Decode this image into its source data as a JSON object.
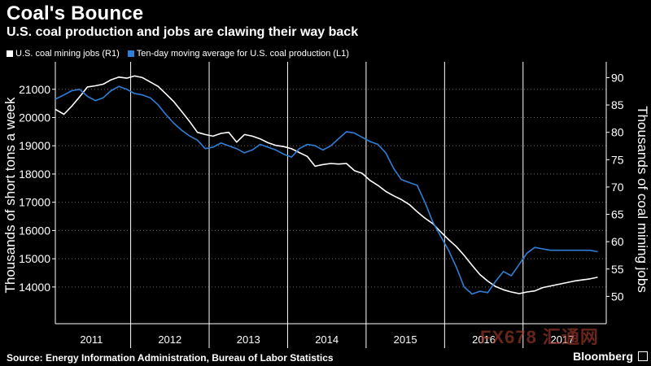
{
  "title": "Coal's Bounce",
  "subtitle": "U.S. coal production and jobs are clawing their way back",
  "source": "Source: Energy Information Administration, Bureau of Labor Statistics",
  "brand": "Bloomberg",
  "watermark": "FX678 汇通网",
  "chart_data": {
    "type": "line",
    "legend_position": "top-left",
    "ylabel_left": "Thousands of short tons a week",
    "ylabel_right": "Thousands of coal mining jobs",
    "ylim_left": [
      12700,
      21800
    ],
    "ylim_right": [
      45,
      92
    ],
    "yticks_left": [
      14000,
      15000,
      16000,
      17000,
      18000,
      19000,
      20000,
      21000
    ],
    "yticks_right": [
      50,
      55,
      60,
      65,
      70,
      75,
      80,
      85,
      90
    ],
    "xlim": [
      2010.54,
      2017.56
    ],
    "year_labels": [
      "2011",
      "2012",
      "2013",
      "2014",
      "2015",
      "2016",
      "2017"
    ],
    "year_dividers": [
      2011.5,
      2012.5,
      2013.5,
      2014.5,
      2015.5,
      2016.5
    ],
    "grid": "horizontal dotted",
    "colors": {
      "background": "#000000",
      "jobs": "#ffffff",
      "production": "#2e7fd8",
      "divider": "#ffffff",
      "grid": "#666666"
    },
    "series": [
      {
        "name": "U.S. coal mining jobs (R1)",
        "axis": "right",
        "color": "#ffffff",
        "x": [
          2010.54,
          2010.65,
          2010.75,
          2010.85,
          2010.95,
          2011.05,
          2011.15,
          2011.25,
          2011.35,
          2011.45,
          2011.55,
          2011.65,
          2011.75,
          2011.85,
          2011.95,
          2012.05,
          2012.15,
          2012.25,
          2012.35,
          2012.45,
          2012.55,
          2012.65,
          2012.75,
          2012.85,
          2012.95,
          2013.05,
          2013.15,
          2013.25,
          2013.35,
          2013.45,
          2013.55,
          2013.65,
          2013.75,
          2013.85,
          2013.95,
          2014.05,
          2014.15,
          2014.25,
          2014.35,
          2014.45,
          2014.55,
          2014.65,
          2014.75,
          2014.85,
          2014.95,
          2015.05,
          2015.15,
          2015.25,
          2015.35,
          2015.45,
          2015.55,
          2015.65,
          2015.75,
          2015.85,
          2015.95,
          2016.05,
          2016.15,
          2016.25,
          2016.35,
          2016.45,
          2016.55,
          2016.65,
          2016.75,
          2016.85,
          2016.95,
          2017.05,
          2017.15,
          2017.25,
          2017.35,
          2017.45
        ],
        "values": [
          84.2,
          83.3,
          84.8,
          86.5,
          88.3,
          88.5,
          88.8,
          89.6,
          90.1,
          89.9,
          90.3,
          90.0,
          89.2,
          88.4,
          87.0,
          85.6,
          83.8,
          82.0,
          80.0,
          79.6,
          79.3,
          79.8,
          80.0,
          78.2,
          79.6,
          79.3,
          78.8,
          78.1,
          77.6,
          77.4,
          77.0,
          76.3,
          75.6,
          73.8,
          74.1,
          74.3,
          74.2,
          74.3,
          73.0,
          72.5,
          71.2,
          70.3,
          69.2,
          68.4,
          67.7,
          66.8,
          65.5,
          64.3,
          63.3,
          61.8,
          60.4,
          59.1,
          57.5,
          55.7,
          54.0,
          52.8,
          51.8,
          51.2,
          50.8,
          50.5,
          50.8,
          51.0,
          51.6,
          51.9,
          52.2,
          52.5,
          52.8,
          53.0,
          53.2,
          53.5
        ]
      },
      {
        "name": "Ten-day moving average for U.S. coal production  (L1)",
        "axis": "left",
        "color": "#2e7fd8",
        "x": [
          2010.54,
          2010.65,
          2010.75,
          2010.85,
          2010.95,
          2011.05,
          2011.15,
          2011.25,
          2011.35,
          2011.45,
          2011.55,
          2011.65,
          2011.75,
          2011.85,
          2011.95,
          2012.05,
          2012.15,
          2012.25,
          2012.35,
          2012.45,
          2012.55,
          2012.65,
          2012.75,
          2012.85,
          2012.95,
          2013.05,
          2013.15,
          2013.25,
          2013.35,
          2013.45,
          2013.55,
          2013.65,
          2013.75,
          2013.85,
          2013.95,
          2014.05,
          2014.15,
          2014.25,
          2014.35,
          2014.45,
          2014.55,
          2014.65,
          2014.75,
          2014.85,
          2014.95,
          2015.05,
          2015.15,
          2015.25,
          2015.35,
          2015.45,
          2015.55,
          2015.65,
          2015.75,
          2015.85,
          2015.95,
          2016.05,
          2016.15,
          2016.25,
          2016.35,
          2016.45,
          2016.55,
          2016.65,
          2016.75,
          2016.85,
          2016.95,
          2017.05,
          2017.15,
          2017.25,
          2017.35,
          2017.45
        ],
        "values": [
          20650,
          20800,
          20950,
          21000,
          20750,
          20600,
          20700,
          20950,
          21100,
          21000,
          20850,
          20800,
          20700,
          20450,
          20100,
          19800,
          19550,
          19350,
          19200,
          18900,
          18950,
          19100,
          19000,
          18900,
          18750,
          18850,
          19050,
          18950,
          18850,
          18700,
          18600,
          18900,
          19050,
          19000,
          18850,
          19000,
          19250,
          19500,
          19450,
          19300,
          19150,
          19050,
          18750,
          18200,
          17800,
          17700,
          17600,
          17000,
          16300,
          15800,
          15300,
          14700,
          14000,
          13750,
          13850,
          13800,
          14200,
          14550,
          14400,
          14800,
          15200,
          15400,
          15350,
          15300,
          15300,
          15300,
          15300,
          15300,
          15300,
          15250
        ]
      }
    ]
  }
}
